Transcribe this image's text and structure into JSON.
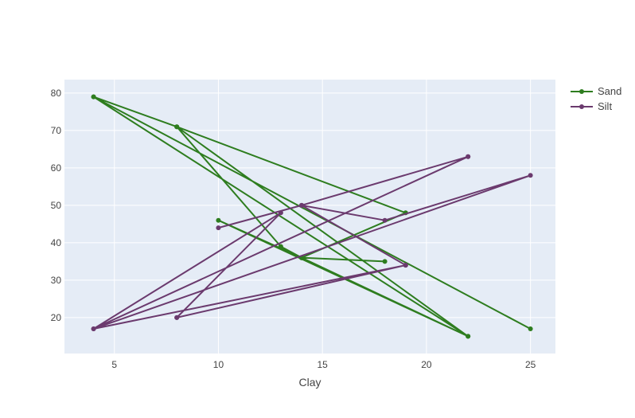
{
  "chart_data": {
    "type": "line",
    "title": "",
    "xlabel": "Clay",
    "ylabel": "",
    "xlim": [
      2.6,
      26.2
    ],
    "ylim": [
      10.4,
      83.6
    ],
    "xticks": [
      5,
      10,
      15,
      20,
      25
    ],
    "yticks": [
      20,
      30,
      40,
      50,
      60,
      70,
      80
    ],
    "grid": true,
    "legend_position": "top-right",
    "series": [
      {
        "name": "Sand",
        "color": "#2e7d1f",
        "x": [
          4,
          22,
          8,
          13,
          14,
          18,
          14,
          22,
          10,
          14,
          19,
          8,
          4,
          25
        ],
        "y": [
          79,
          15,
          71,
          39,
          36,
          35,
          36,
          15,
          46,
          36,
          48,
          71,
          79,
          17
        ]
      },
      {
        "name": "Silt",
        "color": "#6b3a6e",
        "x": [
          22,
          14,
          19,
          4,
          25,
          18,
          14,
          10,
          14,
          22,
          4,
          13,
          8,
          19,
          8
        ],
        "y": [
          63,
          50,
          34,
          17,
          58,
          46,
          50,
          44,
          50,
          63,
          17,
          48,
          20,
          34,
          20
        ]
      }
    ]
  }
}
